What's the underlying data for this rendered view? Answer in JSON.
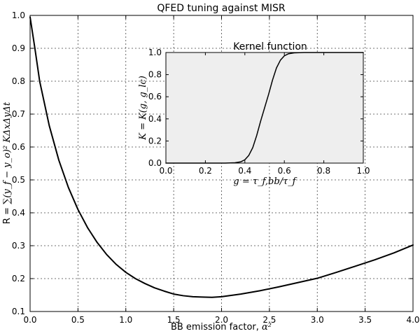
{
  "chart_data": [
    {
      "type": "line",
      "title": "QFED tuning against MISR",
      "xlabel_text": "BB emission factor, ",
      "xlabel_math": "α²",
      "ylabel_text": "R = ",
      "ylabel_math": "∑(y_f − y_o)² KΔxΔyΔt",
      "xlim": [
        0.0,
        4.0
      ],
      "ylim": [
        0.1,
        1.0
      ],
      "xticks": [
        "0.0",
        "0.5",
        "1.0",
        "1.5",
        "2.0",
        "2.5",
        "3.0",
        "3.5",
        "4.0"
      ],
      "yticks": [
        "0.1",
        "0.2",
        "0.3",
        "0.4",
        "0.5",
        "0.6",
        "0.7",
        "0.8",
        "0.9",
        "1.0"
      ],
      "grid": true,
      "series": [
        {
          "color": "#000000",
          "x": [
            0.0,
            0.05,
            0.1,
            0.2,
            0.3,
            0.4,
            0.5,
            0.6,
            0.7,
            0.8,
            0.9,
            1.0,
            1.1,
            1.2,
            1.3,
            1.4,
            1.5,
            1.6,
            1.7,
            1.8,
            1.9,
            2.0,
            2.2,
            2.4,
            2.6,
            2.8,
            3.0,
            3.2,
            3.4,
            3.6,
            3.8,
            4.0
          ],
          "y": [
            0.995,
            0.9,
            0.8,
            0.665,
            0.56,
            0.477,
            0.41,
            0.355,
            0.31,
            0.273,
            0.243,
            0.219,
            0.2,
            0.185,
            0.172,
            0.162,
            0.153,
            0.148,
            0.145,
            0.144,
            0.143,
            0.145,
            0.153,
            0.163,
            0.175,
            0.188,
            0.201,
            0.219,
            0.238,
            0.257,
            0.278,
            0.302
          ]
        }
      ]
    },
    {
      "type": "line",
      "title": "Kernel function",
      "xlabel": "g = τ_f,bb/τ_f",
      "ylabel": "K = K(g, g_lc)",
      "xlim": [
        0.0,
        1.0
      ],
      "ylim": [
        0.0,
        1.0
      ],
      "xticks": [
        "0.0",
        "0.2",
        "0.4",
        "0.6",
        "0.8",
        "1.0"
      ],
      "yticks": [
        "0.0",
        "0.2",
        "0.4",
        "0.6",
        "0.8",
        "1.0"
      ],
      "grid": false,
      "background": "#eeeeee",
      "series": [
        {
          "color": "#000000",
          "x": [
            0.0,
            0.3,
            0.35,
            0.38,
            0.4,
            0.42,
            0.44,
            0.46,
            0.48,
            0.5,
            0.52,
            0.54,
            0.56,
            0.58,
            0.6,
            0.62,
            0.65,
            0.7,
            0.8,
            1.0
          ],
          "y": [
            0.0,
            0.0,
            0.003,
            0.012,
            0.03,
            0.07,
            0.14,
            0.25,
            0.38,
            0.5,
            0.62,
            0.75,
            0.86,
            0.93,
            0.97,
            0.988,
            0.997,
            1.0,
            1.0,
            1.0
          ]
        }
      ]
    }
  ]
}
